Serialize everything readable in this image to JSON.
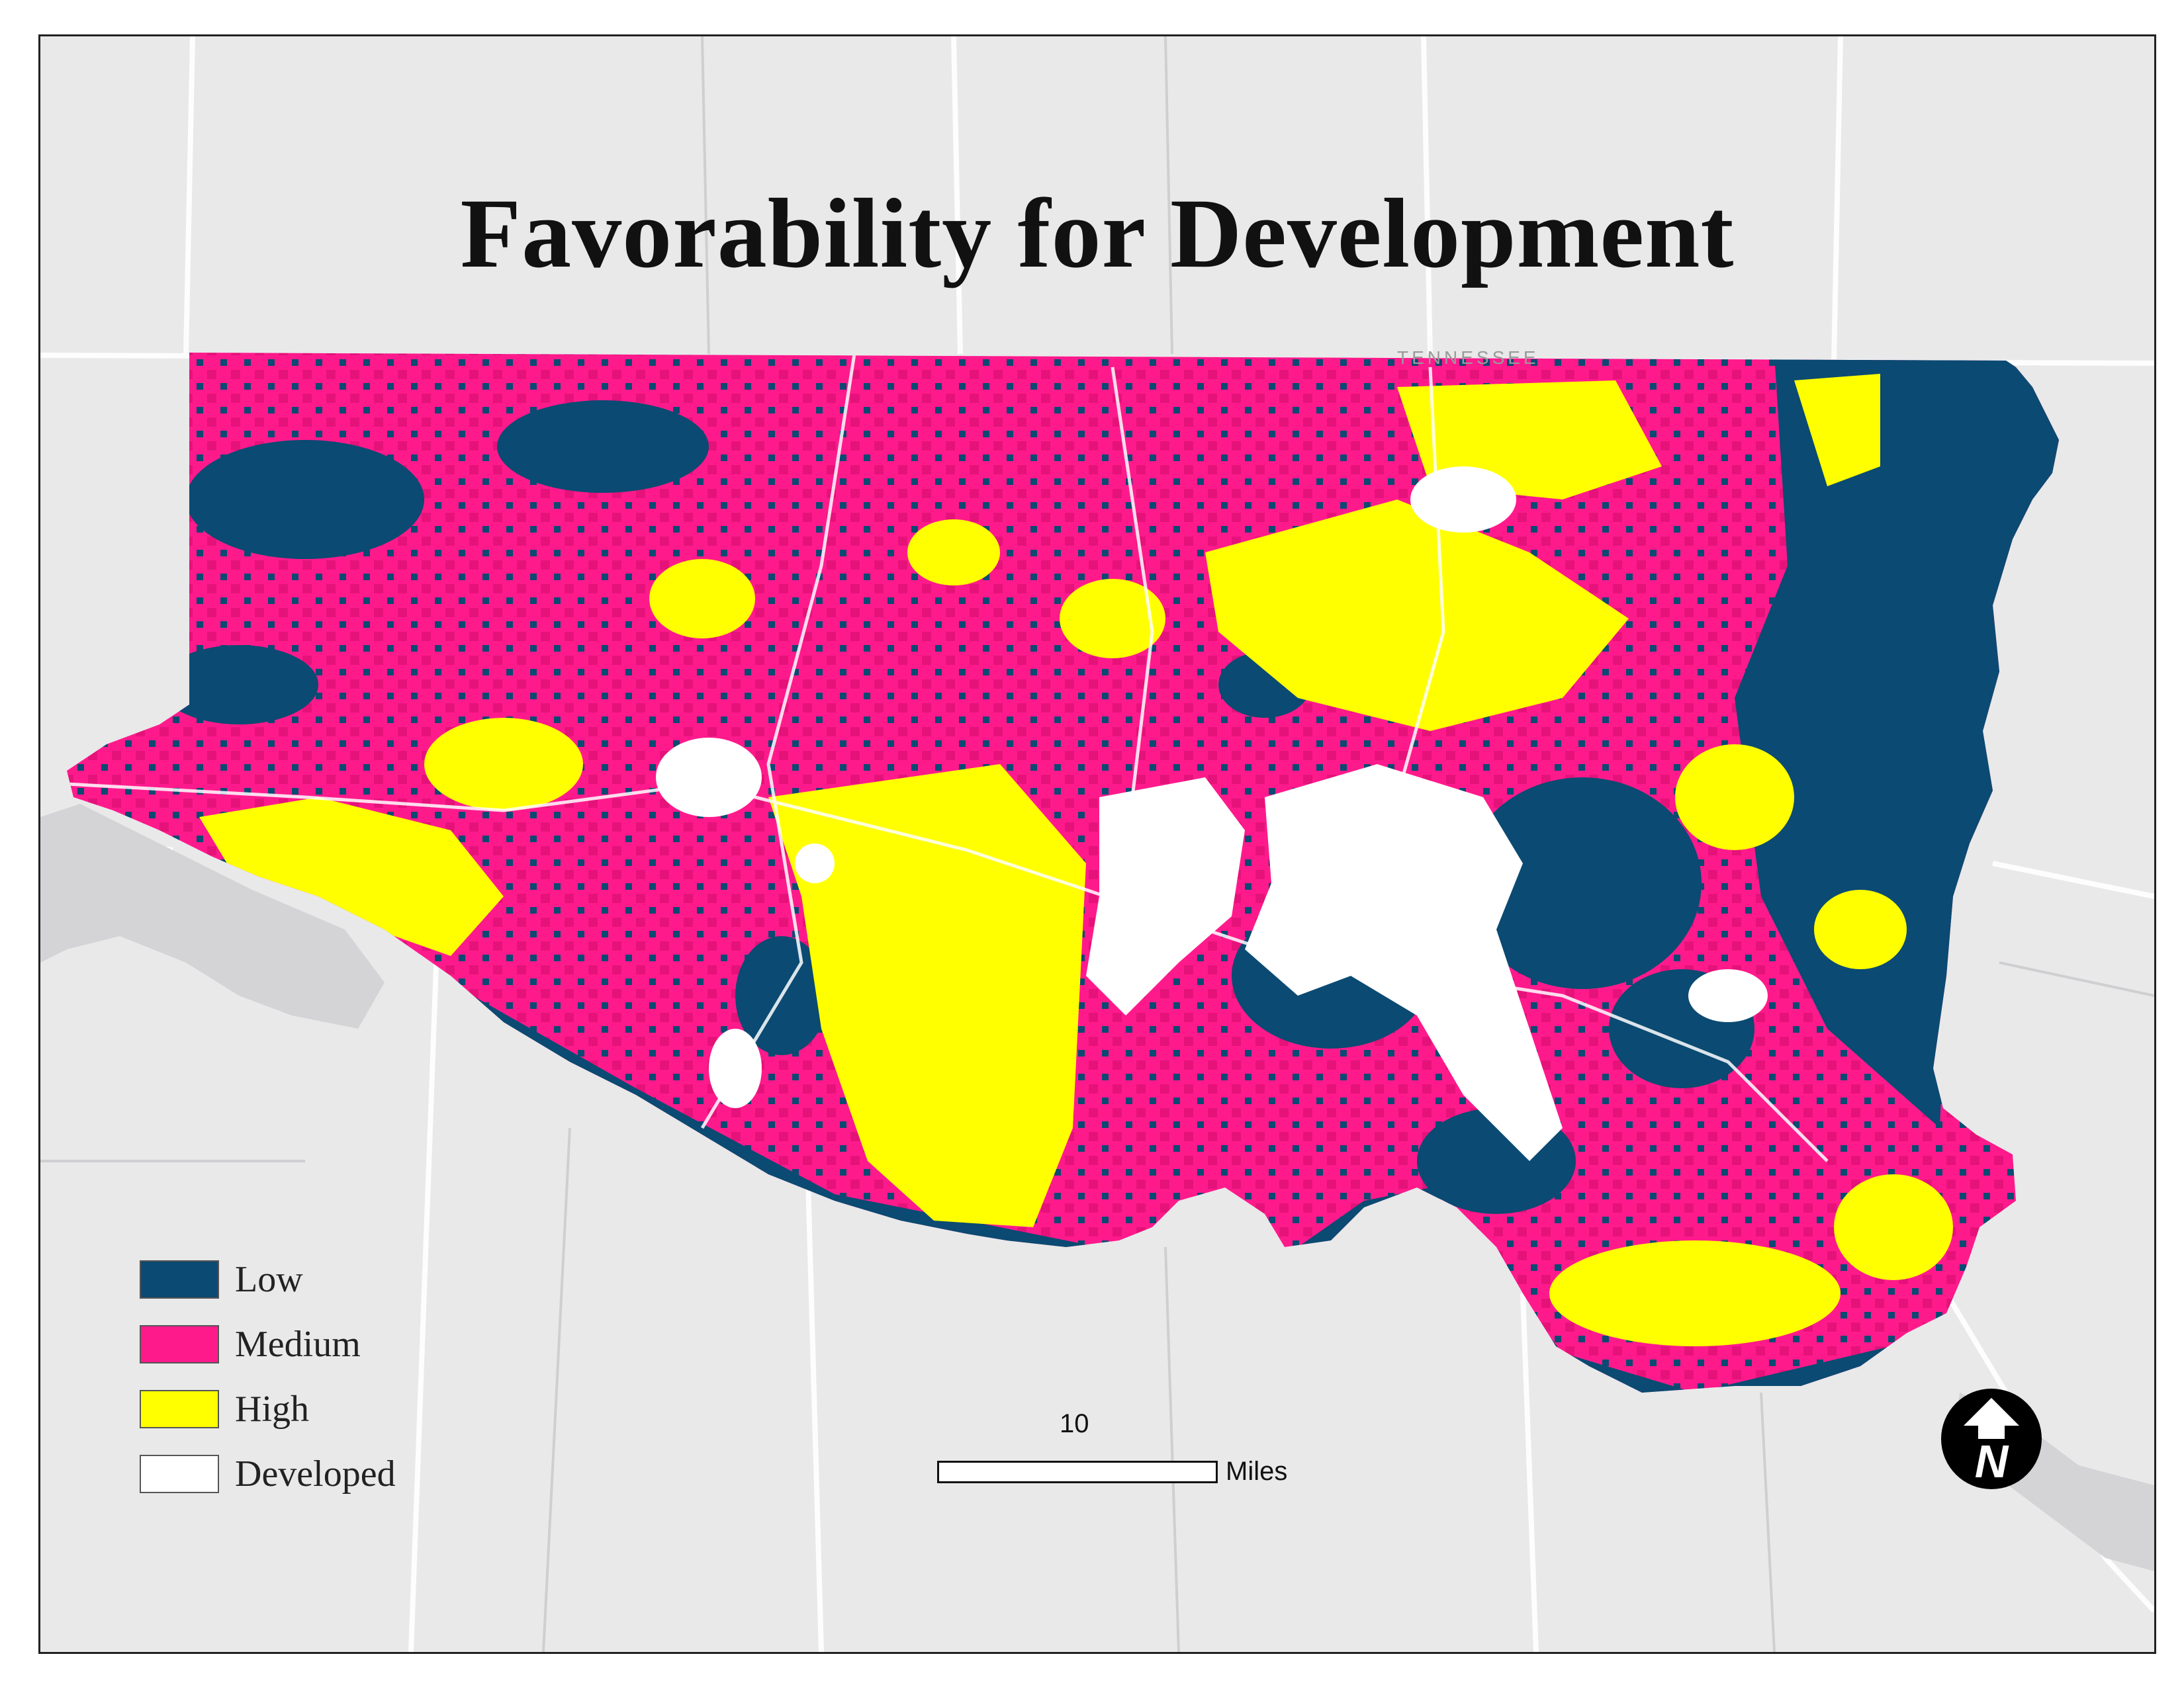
{
  "map": {
    "title": "Favorability for Development",
    "state_label": "TENNESSEE"
  },
  "legend": {
    "items": [
      {
        "label": "Low",
        "color": "#0b4a72"
      },
      {
        "label": "Medium",
        "color": "#ff1a8c"
      },
      {
        "label": "High",
        "color": "#ffff00"
      },
      {
        "label": "Developed",
        "color": "#ffffff"
      }
    ]
  },
  "scale_bar": {
    "value": "10",
    "unit": "Miles"
  },
  "north_arrow": {
    "letter": "N",
    "icon": "north-arrow-icon"
  },
  "colors": {
    "background": "#e9e9ea",
    "roads": "#ffffff",
    "border": "#222222"
  }
}
